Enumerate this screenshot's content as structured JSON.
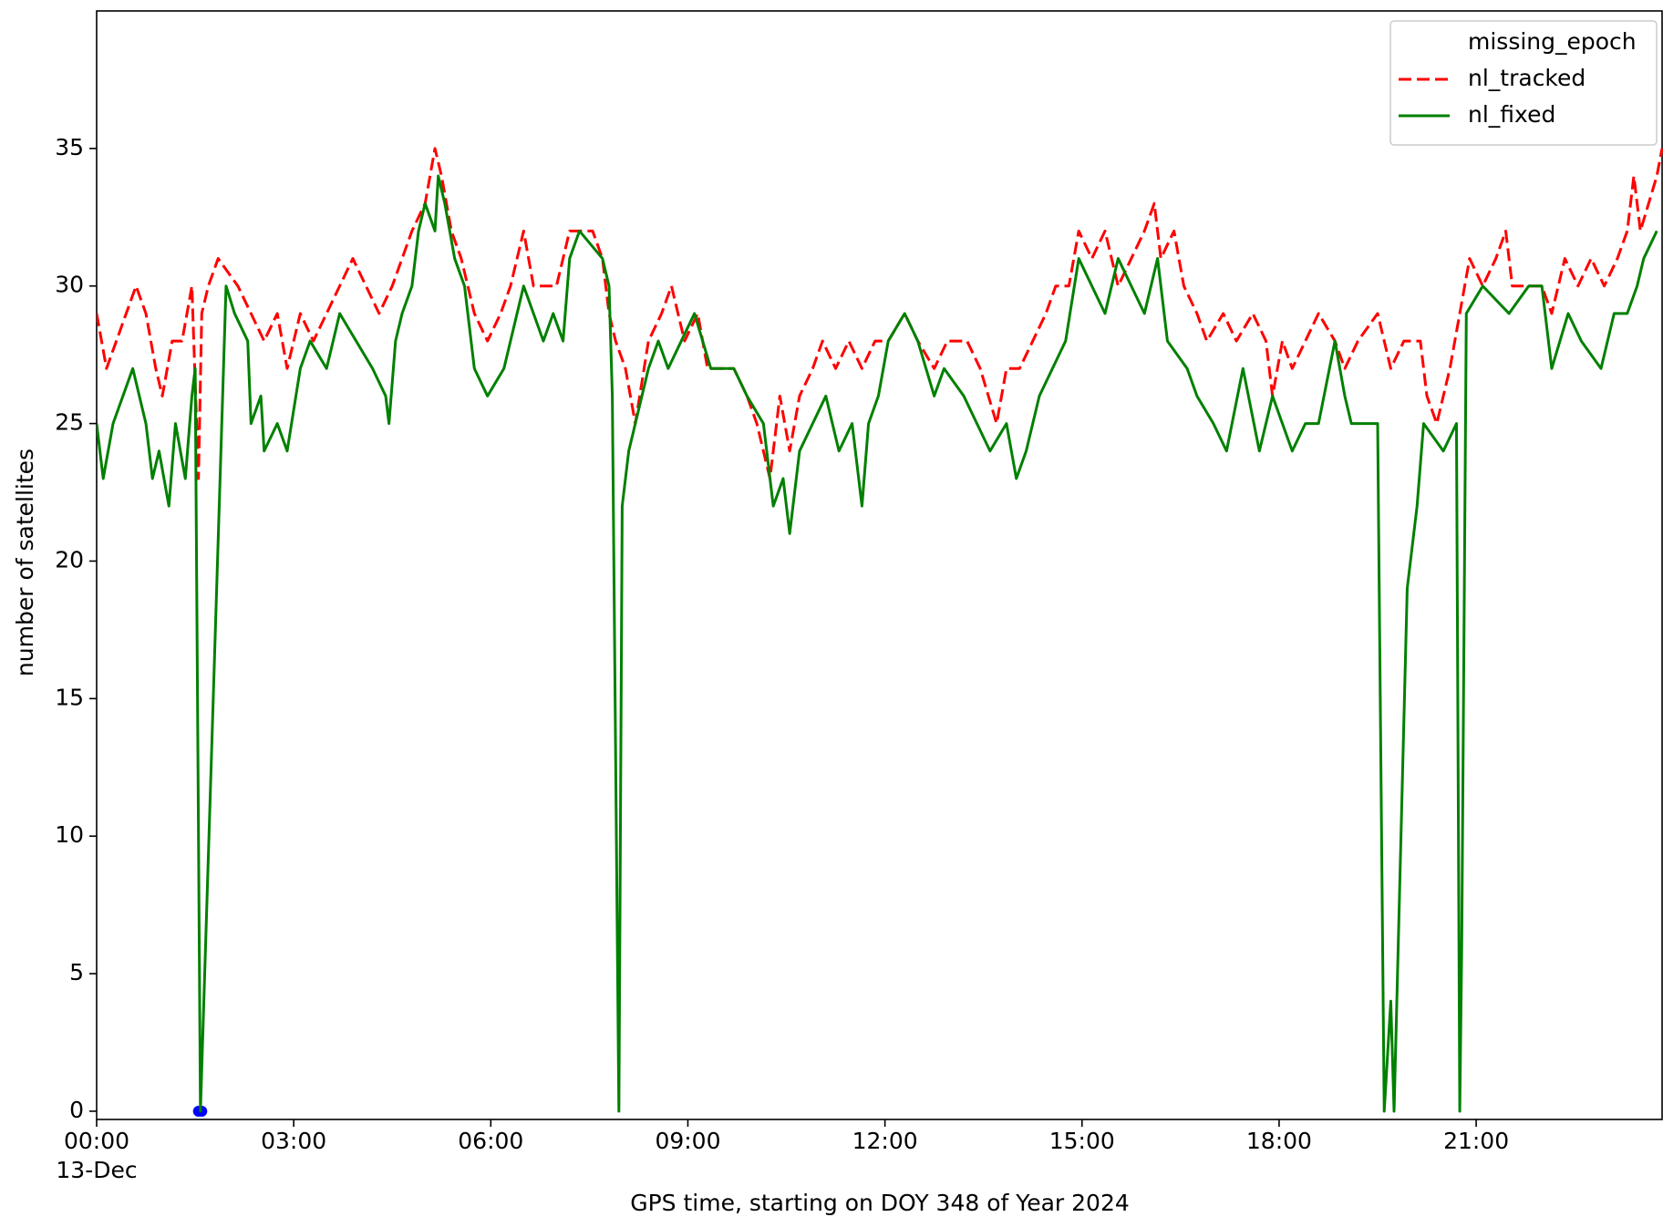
{
  "chart_data": {
    "type": "line",
    "xlabel": "GPS time, starting on DOY 348 of Year 2024",
    "ylabel": "number of satellites",
    "x_date_label": "13-Dec",
    "xlim": [
      0,
      23.83
    ],
    "ylim": [
      -0.3,
      40
    ],
    "xticks": [
      {
        "value": 0,
        "label": "00:00"
      },
      {
        "value": 3,
        "label": "03:00"
      },
      {
        "value": 6,
        "label": "06:00"
      },
      {
        "value": 9,
        "label": "09:00"
      },
      {
        "value": 12,
        "label": "12:00"
      },
      {
        "value": 15,
        "label": "15:00"
      },
      {
        "value": 18,
        "label": "18:00"
      },
      {
        "value": 21,
        "label": "21:00"
      }
    ],
    "yticks": [
      0,
      5,
      10,
      15,
      20,
      25,
      30,
      35
    ],
    "grid": false,
    "legend": "upper right",
    "series": [
      {
        "name": "missing_epoch",
        "color": "#0000ff",
        "linestyle": "none",
        "marker": "o",
        "x": [
          1.55,
          1.6
        ],
        "values": [
          0,
          0
        ]
      },
      {
        "name": "nl_tracked",
        "color": "#ff0000",
        "linestyle": "dashed",
        "marker": "none",
        "x": [
          0,
          0.15,
          0.3,
          0.45,
          0.6,
          0.75,
          0.9,
          1.0,
          1.15,
          1.3,
          1.45,
          1.55,
          1.6,
          1.7,
          1.85,
          2.15,
          2.35,
          2.55,
          2.75,
          2.9,
          3.1,
          3.3,
          3.5,
          3.7,
          3.9,
          4.1,
          4.3,
          4.5,
          4.65,
          4.8,
          5.0,
          5.15,
          5.25,
          5.4,
          5.55,
          5.75,
          5.95,
          6.15,
          6.3,
          6.4,
          6.5,
          6.65,
          6.8,
          7.0,
          7.2,
          7.55,
          7.7,
          7.8,
          7.9,
          8.05,
          8.2,
          8.4,
          8.6,
          8.75,
          8.95,
          9.15,
          9.3,
          9.7,
          9.9,
          10.05,
          10.25,
          10.4,
          10.55,
          10.7,
          10.9,
          11.05,
          11.25,
          11.45,
          11.65,
          11.85,
          12.05,
          12.3,
          12.5,
          12.75,
          12.95,
          13.25,
          13.45,
          13.7,
          13.85,
          14.05,
          14.25,
          14.45,
          14.6,
          14.8,
          14.95,
          15.15,
          15.35,
          15.55,
          15.75,
          15.95,
          16.1,
          16.2,
          16.4,
          16.55,
          16.75,
          16.9,
          17.15,
          17.35,
          17.6,
          17.8,
          17.9,
          18.05,
          18.2,
          18.4,
          18.6,
          18.85,
          19.0,
          19.2,
          19.5,
          19.7,
          19.9,
          20.15,
          20.25,
          20.4,
          20.6,
          20.75,
          20.9,
          21.1,
          21.3,
          21.45,
          21.55,
          21.75,
          22.0,
          22.15,
          22.35,
          22.55,
          22.75,
          22.95,
          23.15,
          23.3,
          23.4,
          23.5,
          23.75,
          23.83
        ],
        "values": [
          29,
          27,
          28,
          29,
          30,
          29,
          27,
          26,
          28,
          28,
          30,
          23,
          29,
          30,
          31,
          30,
          29,
          28,
          29,
          27,
          29,
          28,
          29,
          30,
          31,
          30,
          29,
          30,
          31,
          32,
          33,
          35,
          34,
          32,
          31,
          29,
          28,
          29,
          30,
          31,
          32,
          30,
          30,
          30,
          32,
          32,
          31,
          29,
          28,
          27,
          25,
          28,
          29,
          30,
          28,
          29,
          27,
          27,
          26,
          25,
          23,
          26,
          24,
          26,
          27,
          28,
          27,
          28,
          27,
          28,
          28,
          29,
          28,
          27,
          28,
          28,
          27,
          25,
          27,
          27,
          28,
          29,
          30,
          30,
          32,
          31,
          32,
          30,
          31,
          32,
          33,
          31,
          32,
          30,
          29,
          28,
          29,
          28,
          29,
          28,
          26,
          28,
          27,
          28,
          29,
          28,
          27,
          28,
          29,
          27,
          28,
          28,
          26,
          25,
          27,
          29,
          31,
          30,
          31,
          32,
          30,
          30,
          30,
          29,
          31,
          30,
          31,
          30,
          31,
          32,
          34,
          32,
          34,
          35
        ]
      },
      {
        "name": "nl_fixed",
        "color": "#008000",
        "linestyle": "solid",
        "marker": "none",
        "x": [
          0,
          0.1,
          0.25,
          0.55,
          0.75,
          0.85,
          0.95,
          1.1,
          1.2,
          1.35,
          1.45,
          1.5,
          1.58,
          1.97,
          2.1,
          2.3,
          2.35,
          2.5,
          2.55,
          2.75,
          2.9,
          3.1,
          3.25,
          3.5,
          3.7,
          3.95,
          4.2,
          4.4,
          4.45,
          4.55,
          4.65,
          4.8,
          4.9,
          5.0,
          5.15,
          5.2,
          5.3,
          5.45,
          5.6,
          5.75,
          5.95,
          6.2,
          6.4,
          6.5,
          6.65,
          6.8,
          6.95,
          7.1,
          7.2,
          7.35,
          7.7,
          7.8,
          7.85,
          7.95,
          8.0,
          8.1,
          8.2,
          8.4,
          8.55,
          8.7,
          8.9,
          9.1,
          9.35,
          9.7,
          9.9,
          10.15,
          10.3,
          10.45,
          10.55,
          10.7,
          10.9,
          11.1,
          11.3,
          11.5,
          11.65,
          11.75,
          11.9,
          12.05,
          12.3,
          12.5,
          12.75,
          12.9,
          13.2,
          13.4,
          13.6,
          13.85,
          14.0,
          14.15,
          14.35,
          14.55,
          14.75,
          14.95,
          15.15,
          15.35,
          15.55,
          15.75,
          15.95,
          16.15,
          16.3,
          16.6,
          16.75,
          17.0,
          17.2,
          17.45,
          17.7,
          17.9,
          18.05,
          18.2,
          18.4,
          18.6,
          18.85,
          19.0,
          19.1,
          19.5,
          19.6,
          19.7,
          19.75,
          19.95,
          20.1,
          20.2,
          20.5,
          20.7,
          20.75,
          20.78,
          20.85,
          21.1,
          21.5,
          21.8,
          22.0,
          22.15,
          22.4,
          22.6,
          22.9,
          23.1,
          23.3,
          23.45,
          23.55,
          23.75
        ],
        "values": [
          25,
          23,
          25,
          27,
          25,
          23,
          24,
          22,
          25,
          23,
          26,
          27,
          0,
          30,
          29,
          28,
          25,
          26,
          24,
          25,
          24,
          27,
          28,
          27,
          29,
          28,
          27,
          26,
          25,
          28,
          29,
          30,
          32,
          33,
          32,
          34,
          33,
          31,
          30,
          27,
          26,
          27,
          29,
          30,
          29,
          28,
          29,
          28,
          31,
          32,
          31,
          30,
          26,
          0,
          22,
          24,
          25,
          27,
          28,
          27,
          28,
          29,
          27,
          27,
          26,
          25,
          22,
          23,
          21,
          24,
          25,
          26,
          24,
          25,
          22,
          25,
          26,
          28,
          29,
          28,
          26,
          27,
          26,
          25,
          24,
          25,
          23,
          24,
          26,
          27,
          28,
          31,
          30,
          29,
          31,
          30,
          29,
          31,
          28,
          27,
          26,
          25,
          24,
          27,
          24,
          26,
          25,
          24,
          25,
          25,
          28,
          26,
          25,
          25,
          0,
          4,
          0,
          19,
          22,
          25,
          24,
          25,
          0,
          6,
          29,
          30,
          29,
          30,
          30,
          27,
          29,
          28,
          27,
          29,
          29,
          30,
          31,
          32
        ]
      }
    ]
  }
}
